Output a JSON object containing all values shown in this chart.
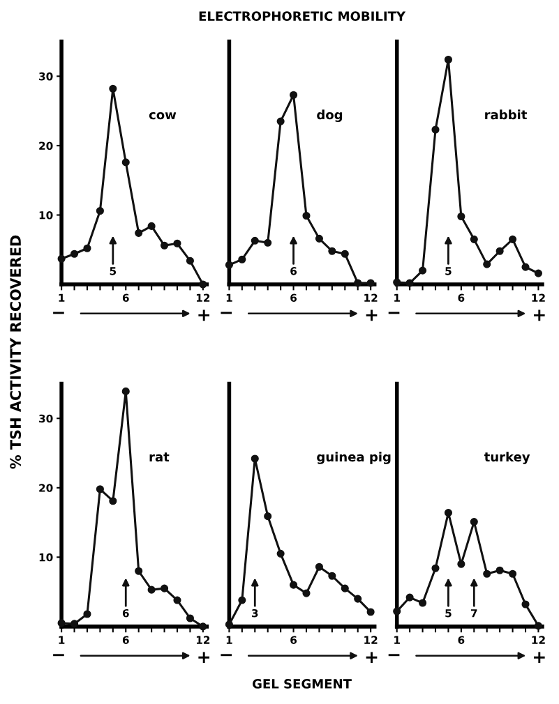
{
  "chart_data": [
    {
      "type": "line",
      "title": "cow",
      "ylabel": "% TSH ACTIVITY RECOVERED",
      "x": [
        1,
        2,
        3,
        4,
        5,
        6,
        7,
        8,
        9,
        10,
        11,
        12
      ],
      "series": [
        {
          "color": "#111111",
          "values": [
            3.7,
            4.4,
            5.2,
            10.6,
            28.2,
            17.6,
            7.4,
            8.4,
            5.6,
            5.9,
            3.4,
            0
          ]
        }
      ],
      "marker": "circle",
      "line_style": "solid",
      "xlim": [
        1,
        12.3
      ],
      "ylim": [
        0,
        35
      ],
      "xticks": [
        1,
        {
          "value": 2,
          "label": null
        },
        {
          "value": 3,
          "label": null
        },
        {
          "value": 4,
          "label": null
        },
        {
          "value": 5,
          "label": null
        },
        6,
        {
          "value": 7,
          "label": null
        },
        {
          "value": 8,
          "label": null
        },
        {
          "value": 9,
          "label": null
        },
        {
          "value": 10,
          "label": null
        },
        {
          "value": 11,
          "label": null
        },
        12
      ],
      "yticks": [
        10,
        20,
        30
      ],
      "annotations": [
        {
          "text": "5",
          "x": 5
        },
        "−",
        "+"
      ]
    },
    {
      "type": "line",
      "title": "dog",
      "subtitle": "ELECTROPHORETIC MOBILITY",
      "x": [
        1,
        2,
        3,
        4,
        5,
        6,
        7,
        8,
        9,
        10,
        11,
        12
      ],
      "series": [
        {
          "color": "#111111",
          "values": [
            2.8,
            3.6,
            6.3,
            6.0,
            23.5,
            27.3,
            9.9,
            6.6,
            4.8,
            4.4,
            0.2,
            0.2
          ]
        }
      ],
      "marker": "circle",
      "line_style": "solid",
      "xlim": [
        1,
        12.3
      ],
      "ylim": [
        0,
        35
      ],
      "tick_labels": "x",
      "xticks": [
        1,
        {
          "value": 2,
          "label": null
        },
        {
          "value": 3,
          "label": null
        },
        {
          "value": 4,
          "label": null
        },
        {
          "value": 5,
          "label": null
        },
        6,
        {
          "value": 7,
          "label": null
        },
        {
          "value": 8,
          "label": null
        },
        {
          "value": 9,
          "label": null
        },
        {
          "value": 10,
          "label": null
        },
        {
          "value": 11,
          "label": null
        },
        12
      ],
      "annotations": [
        {
          "text": "6",
          "x": 6
        },
        "−",
        "+"
      ]
    },
    {
      "type": "line",
      "title": "rabbit",
      "x": [
        1,
        2,
        3,
        4,
        5,
        6,
        7,
        8,
        9,
        10,
        11,
        12
      ],
      "series": [
        {
          "color": "#111111",
          "values": [
            0.3,
            0.2,
            2.0,
            22.3,
            32.4,
            9.8,
            6.5,
            2.9,
            4.8,
            6.5,
            2.5,
            1.6
          ]
        }
      ],
      "marker": "circle",
      "line_style": "solid",
      "xlim": [
        1,
        12.3
      ],
      "ylim": [
        0,
        35
      ],
      "tick_labels": "x",
      "xticks": [
        1,
        {
          "value": 2,
          "label": null
        },
        {
          "value": 3,
          "label": null
        },
        {
          "value": 4,
          "label": null
        },
        {
          "value": 5,
          "label": null
        },
        6,
        {
          "value": 7,
          "label": null
        },
        {
          "value": 8,
          "label": null
        },
        {
          "value": 9,
          "label": null
        },
        {
          "value": 10,
          "label": null
        },
        {
          "value": 11,
          "label": null
        },
        12
      ],
      "annotations": [
        {
          "text": "5",
          "x": 5
        },
        "−",
        "+"
      ]
    },
    {
      "type": "line",
      "title": "rat",
      "x": [
        1,
        2,
        3,
        4,
        5,
        6,
        7,
        8,
        9,
        10,
        11,
        12
      ],
      "series": [
        {
          "color": "#111111",
          "values": [
            0.5,
            0.4,
            1.8,
            19.8,
            18.1,
            33.9,
            8.0,
            5.3,
            5.5,
            3.8,
            1.2,
            0
          ]
        }
      ],
      "marker": "circle",
      "line_style": "solid",
      "xlim": [
        1,
        12.3
      ],
      "ylim": [
        0,
        35
      ],
      "xticks": [
        1,
        {
          "value": 2,
          "label": null
        },
        {
          "value": 3,
          "label": null
        },
        {
          "value": 4,
          "label": null
        },
        {
          "value": 5,
          "label": null
        },
        6,
        {
          "value": 7,
          "label": null
        },
        {
          "value": 8,
          "label": null
        },
        {
          "value": 9,
          "label": null
        },
        {
          "value": 10,
          "label": null
        },
        {
          "value": 11,
          "label": null
        },
        12
      ],
      "yticks": [
        10,
        20,
        30
      ],
      "annotations": [
        {
          "text": "6",
          "x": 6
        },
        "−",
        "+"
      ]
    },
    {
      "type": "line",
      "title": "guinea pig",
      "xlabel": "GEL SEGMENT",
      "x": [
        1,
        2,
        3,
        4,
        5,
        6,
        7,
        8,
        9,
        10,
        11,
        12
      ],
      "series": [
        {
          "color": "#111111",
          "values": [
            0.3,
            3.8,
            24.2,
            15.9,
            10.5,
            6.0,
            4.8,
            8.6,
            7.3,
            5.5,
            4.0,
            2.1
          ]
        }
      ],
      "marker": "circle",
      "line_style": "solid",
      "xlim": [
        1,
        12.3
      ],
      "ylim": [
        0,
        35
      ],
      "tick_labels": "x",
      "xticks": [
        1,
        {
          "value": 2,
          "label": null
        },
        {
          "value": 3,
          "label": null
        },
        {
          "value": 4,
          "label": null
        },
        {
          "value": 5,
          "label": null
        },
        6,
        {
          "value": 7,
          "label": null
        },
        {
          "value": 8,
          "label": null
        },
        {
          "value": 9,
          "label": null
        },
        {
          "value": 10,
          "label": null
        },
        {
          "value": 11,
          "label": null
        },
        12
      ],
      "annotations": [
        {
          "text": "3",
          "x": 3
        },
        "−",
        "+"
      ]
    },
    {
      "type": "line",
      "title": "turkey",
      "x": [
        1,
        2,
        3,
        4,
        5,
        6,
        7,
        8,
        9,
        10,
        11,
        12
      ],
      "series": [
        {
          "color": "#111111",
          "values": [
            2.2,
            4.2,
            3.4,
            8.4,
            16.4,
            9.0,
            15.1,
            7.6,
            8.1,
            7.6,
            3.2,
            0.1
          ]
        }
      ],
      "marker": "circle",
      "line_style": "solid",
      "xlim": [
        1,
        12.3
      ],
      "ylim": [
        0,
        35
      ],
      "tick_labels": "x",
      "xticks": [
        1,
        {
          "value": 2,
          "label": null
        },
        {
          "value": 3,
          "label": null
        },
        {
          "value": 4,
          "label": null
        },
        {
          "value": 5,
          "label": null
        },
        6,
        {
          "value": 7,
          "label": null
        },
        {
          "value": 8,
          "label": null
        },
        {
          "value": 9,
          "label": null
        },
        {
          "value": 10,
          "label": null
        },
        {
          "value": 11,
          "label": null
        },
        12
      ],
      "annotations": [
        {
          "text": "5",
          "x": 5
        },
        {
          "text": "7",
          "x": 7
        },
        "−",
        "+"
      ]
    }
  ]
}
